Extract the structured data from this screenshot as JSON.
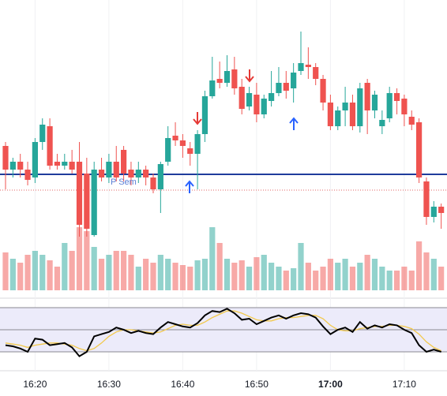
{
  "chart_data": {
    "type": "candlestick",
    "categories": [
      null,
      null,
      null,
      null,
      "16:20",
      null,
      null,
      null,
      null,
      null,
      null,
      null,
      null,
      null,
      "16:30",
      null,
      null,
      null,
      null,
      null,
      null,
      null,
      null,
      null,
      "16:40",
      null,
      null,
      null,
      null,
      null,
      null,
      null,
      null,
      null,
      "16:50",
      null,
      null,
      null,
      null,
      null,
      null,
      null,
      null,
      null,
      "17:00",
      null,
      null,
      null,
      null,
      null,
      null,
      null,
      null,
      null,
      "17:10",
      null,
      null,
      null,
      null,
      null
    ],
    "open": [
      115,
      85,
      95,
      85,
      75,
      120,
      140,
      95,
      90,
      95,
      95,
      80,
      2,
      85,
      75,
      95,
      110,
      85,
      75,
      85,
      75,
      60,
      95,
      128,
      122,
      112,
      105,
      130,
      178,
      200,
      195,
      212,
      190,
      165,
      180,
      155,
      172,
      182,
      195,
      188,
      210,
      218,
      215,
      200,
      170,
      140,
      160,
      170,
      140,
      195,
      160,
      140,
      150,
      182,
      175,
      152,
      145,
      70,
      25,
      38
    ],
    "high": [
      120,
      100,
      105,
      95,
      125,
      150,
      150,
      105,
      105,
      110,
      120,
      100,
      95,
      100,
      105,
      115,
      115,
      95,
      95,
      90,
      80,
      95,
      140,
      145,
      130,
      120,
      135,
      185,
      228,
      222,
      230,
      228,
      200,
      190,
      195,
      180,
      210,
      215,
      210,
      220,
      260,
      240,
      220,
      205,
      180,
      165,
      190,
      180,
      195,
      200,
      185,
      160,
      190,
      188,
      180,
      160,
      150,
      75,
      45,
      42
    ],
    "low": [
      60,
      75,
      75,
      65,
      68,
      110,
      85,
      85,
      85,
      80,
      0,
      0,
      0,
      70,
      68,
      70,
      70,
      65,
      68,
      65,
      55,
      30,
      90,
      115,
      100,
      90,
      60,
      120,
      175,
      188,
      190,
      180,
      155,
      160,
      145,
      150,
      165,
      178,
      175,
      170,
      205,
      200,
      192,
      160,
      135,
      135,
      140,
      135,
      132,
      130,
      150,
      130,
      145,
      155,
      140,
      135,
      68,
      15,
      18,
      10
    ],
    "close": [
      85,
      95,
      85,
      72,
      120,
      142,
      90,
      90,
      95,
      85,
      15,
      10,
      85,
      75,
      95,
      75,
      80,
      75,
      85,
      75,
      60,
      92,
      125,
      122,
      115,
      105,
      130,
      178,
      198,
      195,
      210,
      188,
      162,
      182,
      155,
      175,
      182,
      195,
      185,
      208,
      220,
      215,
      200,
      170,
      140,
      160,
      170,
      140,
      188,
      160,
      180,
      148,
      182,
      172,
      155,
      142,
      75,
      25,
      38,
      30
    ],
    "ylim": [
      0,
      300
    ],
    "up_color": "#26a69a",
    "down_color": "#ef5350",
    "volume": [
      48,
      40,
      35,
      45,
      50,
      45,
      38,
      30,
      60,
      50,
      80,
      75,
      55,
      40,
      45,
      50,
      50,
      45,
      30,
      40,
      35,
      45,
      40,
      35,
      32,
      30,
      38,
      40,
      80,
      60,
      40,
      35,
      38,
      30,
      42,
      45,
      35,
      30,
      25,
      28,
      60,
      35,
      25,
      30,
      40,
      35,
      40,
      30,
      35,
      45,
      40,
      30,
      25,
      25,
      30,
      25,
      62,
      48,
      40,
      30
    ],
    "volume_ylim": [
      0,
      100
    ],
    "levels": [
      {
        "value": 79,
        "color": "#1f3c9c",
        "style": "solid"
      },
      {
        "value": 59,
        "color": "#e06666",
        "style": "dotted"
      }
    ],
    "annotation": "P Sem",
    "rsi": [
      36,
      35,
      33,
      30,
      42,
      41,
      36,
      37,
      38,
      34,
      26,
      30,
      44,
      46,
      48,
      52,
      50,
      47,
      49,
      47,
      46,
      52,
      57,
      55,
      53,
      52,
      56,
      63,
      67,
      66,
      69,
      65,
      59,
      60,
      55,
      58,
      61,
      63,
      60,
      63,
      65,
      64,
      61,
      53,
      46,
      50,
      52,
      48,
      57,
      51,
      54,
      52,
      55,
      54,
      50,
      47,
      36,
      30,
      32,
      30
    ],
    "rsi_ma": [
      38,
      37,
      36,
      34,
      36,
      37,
      38,
      38,
      37,
      36,
      33,
      31,
      33,
      38,
      44,
      48,
      50,
      50,
      49,
      48,
      47,
      48,
      51,
      54,
      55,
      54,
      54,
      57,
      61,
      64,
      67,
      67,
      65,
      62,
      59,
      58,
      58,
      60,
      61,
      61,
      62,
      63,
      63,
      60,
      54,
      50,
      49,
      49,
      51,
      52,
      53,
      53,
      54,
      54,
      53,
      51,
      46,
      39,
      34,
      31
    ],
    "rsi_ylim": [
      10,
      80
    ],
    "rsi_levels": [
      70,
      50,
      30
    ],
    "rsi_color": "#000000",
    "rsi_ma_color": "#f2c94c",
    "rsi_band_color": "#ecebfa",
    "grid": true
  }
}
